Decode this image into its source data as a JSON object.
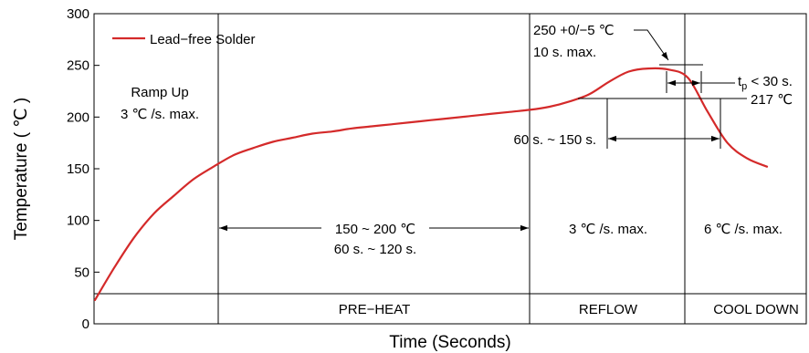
{
  "chart_data": {
    "type": "line",
    "xlabel": "Time (Seconds)",
    "ylabel": "Temperature ( ℃ )",
    "ylim": [
      0,
      300
    ],
    "y_ticks": [
      "0",
      "50",
      "100",
      "150",
      "200",
      "250",
      "300"
    ],
    "y_tick_values": [
      0,
      50,
      100,
      150,
      200,
      250,
      300
    ],
    "x_ticks": [],
    "grid": false,
    "legend_position": "top-left",
    "series": [
      {
        "name": "Lead−free Solder",
        "color": "#d42a2a",
        "y": [
          23,
          55,
          84,
          107,
          124,
          140,
          152,
          163,
          170,
          176,
          180,
          184,
          186,
          189,
          191,
          193,
          195,
          197,
          199,
          201,
          203,
          205,
          207,
          210,
          215,
          222,
          234,
          244,
          247,
          246,
          238,
          205,
          175,
          160,
          152
        ]
      }
    ],
    "zones": [
      "PRE−HEAT",
      "REFLOW",
      "COOL DOWN"
    ],
    "annotations": {
      "ramp_up": [
        "Ramp Up",
        "3 ℃ /s. max."
      ],
      "preheat": [
        "150 ~ 200 ℃",
        "60 s. ~ 120 s."
      ],
      "reflow_rate": "3 ℃ /s. max.",
      "cool_rate": "6 ℃ /s. max.",
      "peak": [
        "250 +0/−5 ℃",
        "10 s. max."
      ],
      "tp_prefix": "t",
      "tp_sub": "p",
      "tp_suffix": " < 30 s.",
      "liquidus": "217 ℃",
      "above_liquidus": "60 s. ~ 150 s."
    }
  }
}
